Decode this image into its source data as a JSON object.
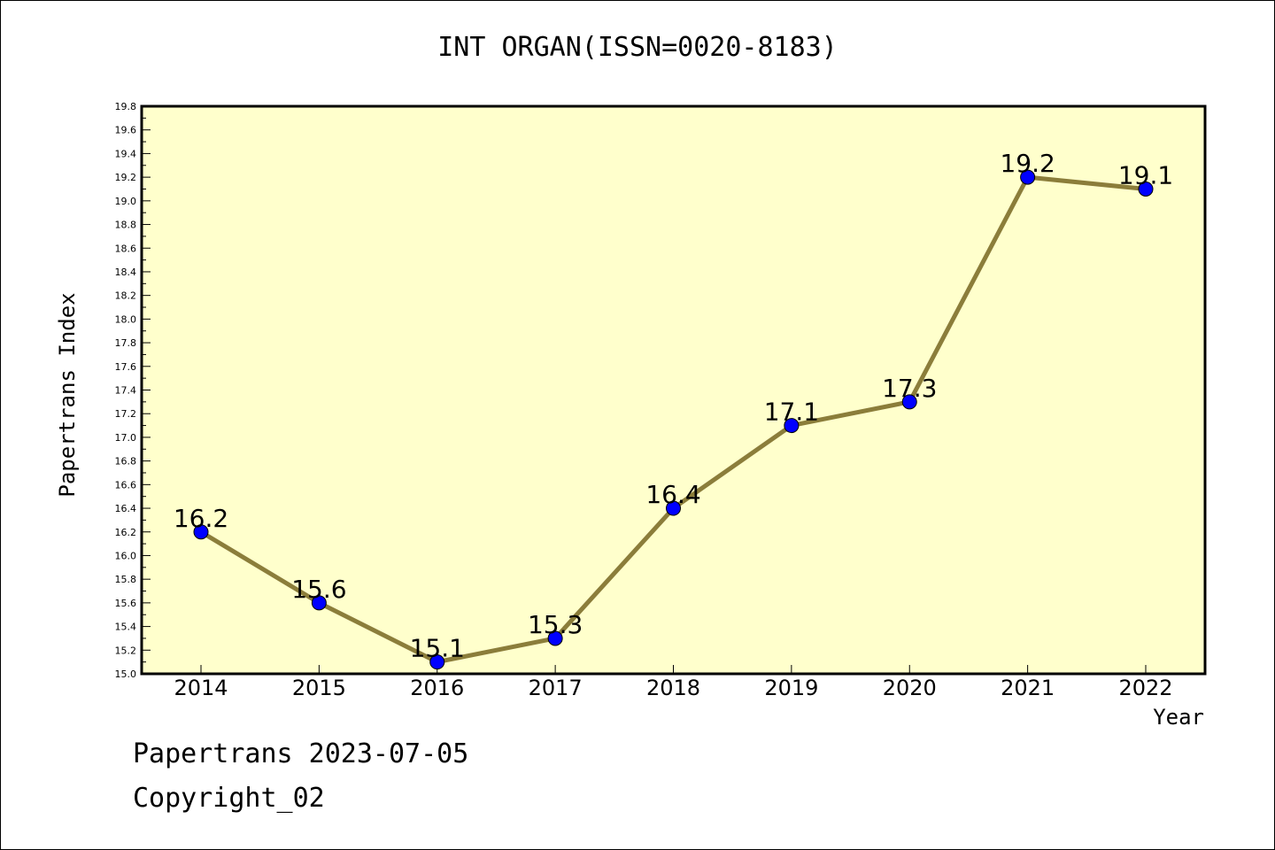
{
  "chart_data": {
    "type": "line",
    "title": "INT ORGAN(ISSN=0020-8183)",
    "xlabel": "Year",
    "ylabel": "Papertrans Index",
    "categories": [
      "2014",
      "2015",
      "2016",
      "2017",
      "2018",
      "2019",
      "2020",
      "2021",
      "2022"
    ],
    "values": [
      16.2,
      15.6,
      15.1,
      15.3,
      16.4,
      17.1,
      17.3,
      19.2,
      19.1
    ],
    "data_labels": [
      "16.2",
      "15.6",
      "15.1",
      "15.3",
      "16.4",
      "17.1",
      "17.3",
      "19.2",
      "19.1"
    ],
    "ylim": [
      15.0,
      19.8
    ],
    "y_ticks": [
      "15.0",
      "15.2",
      "15.4",
      "15.6",
      "15.8",
      "16.0",
      "16.2",
      "16.4",
      "16.6",
      "16.8",
      "17.0",
      "17.2",
      "17.4",
      "17.6",
      "17.8",
      "18.0",
      "18.2",
      "18.4",
      "18.6",
      "18.8",
      "19.0",
      "19.2",
      "19.4",
      "19.6",
      "19.8"
    ],
    "grid": false,
    "colors": {
      "plot_background": "#ffffcc",
      "line": "#8b7d3a",
      "marker": "#0000ff"
    }
  },
  "footer": {
    "line1": "Papertrans 2023-07-05",
    "line2": "Copyright_02"
  }
}
